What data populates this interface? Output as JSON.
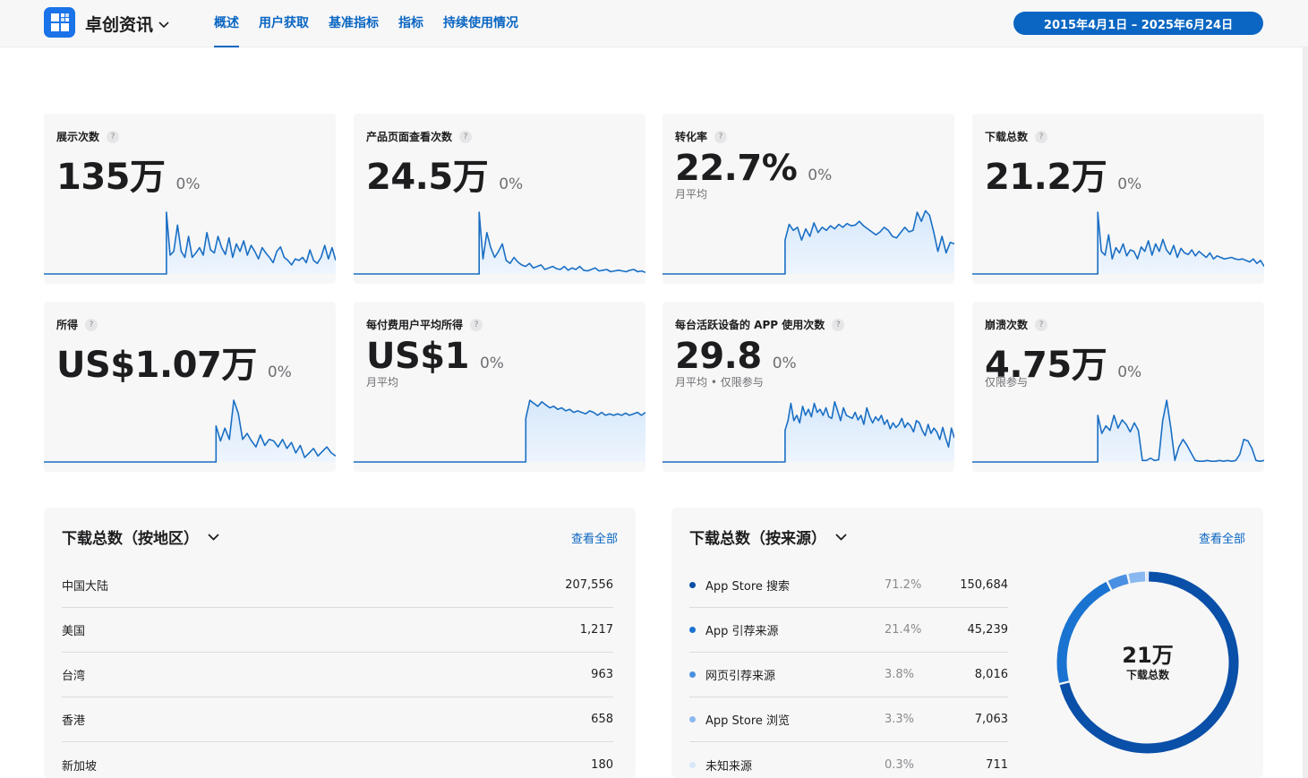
{
  "header": {
    "app_name": "卓创资讯",
    "tabs": [
      {
        "label": "概述",
        "active": true
      },
      {
        "label": "用户获取"
      },
      {
        "label": "基准指标"
      },
      {
        "label": "指标"
      },
      {
        "label": "持续使用情况"
      }
    ],
    "date_range": "2015年4月1日 – 2025年6月24日"
  },
  "colors": {
    "accent": "#0a66c2",
    "chart_line": "#1a6fc4",
    "chart_fill": "#d6e8fb",
    "card_bg": "#f7f7f7"
  },
  "metrics": [
    {
      "label": "展示次数",
      "value": "135万",
      "change": "0%",
      "sub": "",
      "help": "?"
    },
    {
      "label": "产品页面查看次数",
      "value": "24.5万",
      "change": "0%",
      "sub": "",
      "help": "?"
    },
    {
      "label": "转化率",
      "value": "22.7%",
      "change": "0%",
      "sub": "月平均",
      "help": "?"
    },
    {
      "label": "下载总数",
      "value": "21.2万",
      "change": "0%",
      "sub": "",
      "help": "?"
    },
    {
      "label": "所得",
      "value": "US$1.07万",
      "change": "0%",
      "sub": "",
      "help": "?"
    },
    {
      "label": "每付费用户平均所得",
      "value": "US$1",
      "change": "0%",
      "sub": "月平均",
      "help": "?"
    },
    {
      "label": "每台活跃设备的 APP 使用次数",
      "value": "29.8",
      "change": "0%",
      "sub": "月平均 • 仅限参与",
      "help": "?"
    },
    {
      "label": "崩溃次数",
      "value": "4.75万",
      "change": "0%",
      "sub": "仅限参与",
      "help": "?"
    }
  ],
  "sparklines": [
    {
      "start": 0.42,
      "values": [
        0.82,
        0.25,
        0.3,
        0.65,
        0.3,
        0.22,
        0.5,
        0.22,
        0.28,
        0.35,
        0.25,
        0.55,
        0.32,
        0.28,
        0.5,
        0.35,
        0.26,
        0.48,
        0.22,
        0.4,
        0.3,
        0.44,
        0.25,
        0.38,
        0.3,
        0.2,
        0.35,
        0.28,
        0.22,
        0.15,
        0.3,
        0.36,
        0.22,
        0.18,
        0.12,
        0.2,
        0.18,
        0.22,
        0.15,
        0.32,
        0.18,
        0.14,
        0.22,
        0.38,
        0.2,
        0.35,
        0.18
      ]
    },
    {
      "start": 0.43,
      "values": [
        0.82,
        0.2,
        0.55,
        0.35,
        0.22,
        0.3,
        0.4,
        0.18,
        0.14,
        0.22,
        0.16,
        0.12,
        0.1,
        0.14,
        0.08,
        0.1,
        0.12,
        0.06,
        0.08,
        0.1,
        0.07,
        0.06,
        0.1,
        0.05,
        0.08,
        0.06,
        0.1,
        0.05,
        0.04,
        0.06,
        0.08,
        0.04,
        0.05,
        0.06,
        0.03,
        0.04,
        0.05,
        0.04,
        0.03,
        0.05,
        0.06,
        0.03,
        0.04,
        0.02
      ]
    },
    {
      "start": 0.42,
      "values": [
        0.45,
        0.66,
        0.58,
        0.62,
        0.45,
        0.6,
        0.5,
        0.68,
        0.55,
        0.62,
        0.58,
        0.64,
        0.6,
        0.66,
        0.62,
        0.67,
        0.64,
        0.65,
        0.7,
        0.64,
        0.6,
        0.56,
        0.52,
        0.56,
        0.62,
        0.58,
        0.5,
        0.48,
        0.55,
        0.62,
        0.56,
        0.58,
        0.82,
        0.7,
        0.84,
        0.78,
        0.56,
        0.3,
        0.5,
        0.28,
        0.42,
        0.4
      ]
    },
    {
      "start": 0.43,
      "values": [
        0.82,
        0.3,
        0.25,
        0.52,
        0.2,
        0.35,
        0.28,
        0.4,
        0.24,
        0.32,
        0.3,
        0.2,
        0.36,
        0.3,
        0.44,
        0.25,
        0.4,
        0.3,
        0.46,
        0.32,
        0.26,
        0.38,
        0.22,
        0.34,
        0.28,
        0.26,
        0.32,
        0.24,
        0.3,
        0.26,
        0.22,
        0.28,
        0.2,
        0.24,
        0.22,
        0.2,
        0.21,
        0.22,
        0.2,
        0.19,
        0.2,
        0.18,
        0.16,
        0.2,
        0.14,
        0.18,
        0.1
      ]
    },
    {
      "start": 0.59,
      "values": [
        0.48,
        0.28,
        0.45,
        0.3,
        0.82,
        0.65,
        0.3,
        0.38,
        0.28,
        0.2,
        0.36,
        0.22,
        0.3,
        0.28,
        0.2,
        0.3,
        0.18,
        0.26,
        0.12,
        0.22,
        0.06,
        0.12,
        0.18,
        0.08,
        0.14,
        0.2,
        0.12,
        0.08
      ]
    },
    {
      "start": 0.59,
      "values": [
        0.58,
        0.82,
        0.78,
        0.74,
        0.8,
        0.76,
        0.72,
        0.74,
        0.7,
        0.72,
        0.68,
        0.7,
        0.66,
        0.68,
        0.66,
        0.64,
        0.68,
        0.66,
        0.62,
        0.66,
        0.62,
        0.64,
        0.62,
        0.64,
        0.62,
        0.65,
        0.62,
        0.64,
        0.66,
        0.62,
        0.66
      ]
    },
    {
      "start": 0.42,
      "values": [
        0.42,
        0.55,
        0.78,
        0.55,
        0.62,
        0.52,
        0.74,
        0.62,
        0.7,
        0.6,
        0.78,
        0.66,
        0.7,
        0.62,
        0.72,
        0.6,
        0.58,
        0.8,
        0.68,
        0.55,
        0.72,
        0.62,
        0.6,
        0.58,
        0.66,
        0.56,
        0.62,
        0.5,
        0.72,
        0.6,
        0.52,
        0.6,
        0.55,
        0.62,
        0.5,
        0.56,
        0.44,
        0.52,
        0.46,
        0.5,
        0.58,
        0.46,
        0.52,
        0.48,
        0.4,
        0.55,
        0.52,
        0.42,
        0.35,
        0.5,
        0.38,
        0.45,
        0.4,
        0.3,
        0.46,
        0.32,
        0.2,
        0.45,
        0.32
      ]
    },
    {
      "start": 0.43,
      "values": [
        0.62,
        0.38,
        0.48,
        0.42,
        0.62,
        0.45,
        0.56,
        0.5,
        0.4,
        0.52,
        0.42,
        0.02,
        0.02,
        0.05,
        0.02,
        0.03,
        0.55,
        0.82,
        0.45,
        0.02,
        0.2,
        0.3,
        0.22,
        0.12,
        0.02,
        0.01,
        0.01,
        0.02,
        0.01,
        0.01,
        0.02,
        0.01,
        0.02,
        0.01,
        0.02,
        0.1,
        0.3,
        0.28,
        0.18,
        0.02,
        0.01,
        0.02
      ]
    }
  ],
  "region_panel": {
    "title": "下载总数（按地区）",
    "view_all": "查看全部",
    "rows": [
      {
        "name": "中国大陆",
        "value": "207,556"
      },
      {
        "name": "美国",
        "value": "1,217"
      },
      {
        "name": "台湾",
        "value": "963"
      },
      {
        "name": "香港",
        "value": "658"
      },
      {
        "name": "新加坡",
        "value": "180"
      }
    ]
  },
  "source_panel": {
    "title": "下载总数（按来源）",
    "view_all": "查看全部",
    "rows": [
      {
        "name": "App Store 搜索",
        "pct": "71.2%",
        "value": "150,684",
        "color": "#0a4fa8"
      },
      {
        "name": "App 引荐来源",
        "pct": "21.4%",
        "value": "45,239",
        "color": "#1a73d0"
      },
      {
        "name": "网页引荐来源",
        "pct": "3.8%",
        "value": "8,016",
        "color": "#4a90e2"
      },
      {
        "name": "App Store 浏览",
        "pct": "3.3%",
        "value": "7,063",
        "color": "#8ab8f0"
      },
      {
        "name": "未知来源",
        "pct": "0.3%",
        "value": "711",
        "color": "#d8e6f8"
      }
    ],
    "donut_value": "21万",
    "donut_label": "下载总数",
    "shares": [
      0.712,
      0.214,
      0.038,
      0.033,
      0.003
    ]
  }
}
